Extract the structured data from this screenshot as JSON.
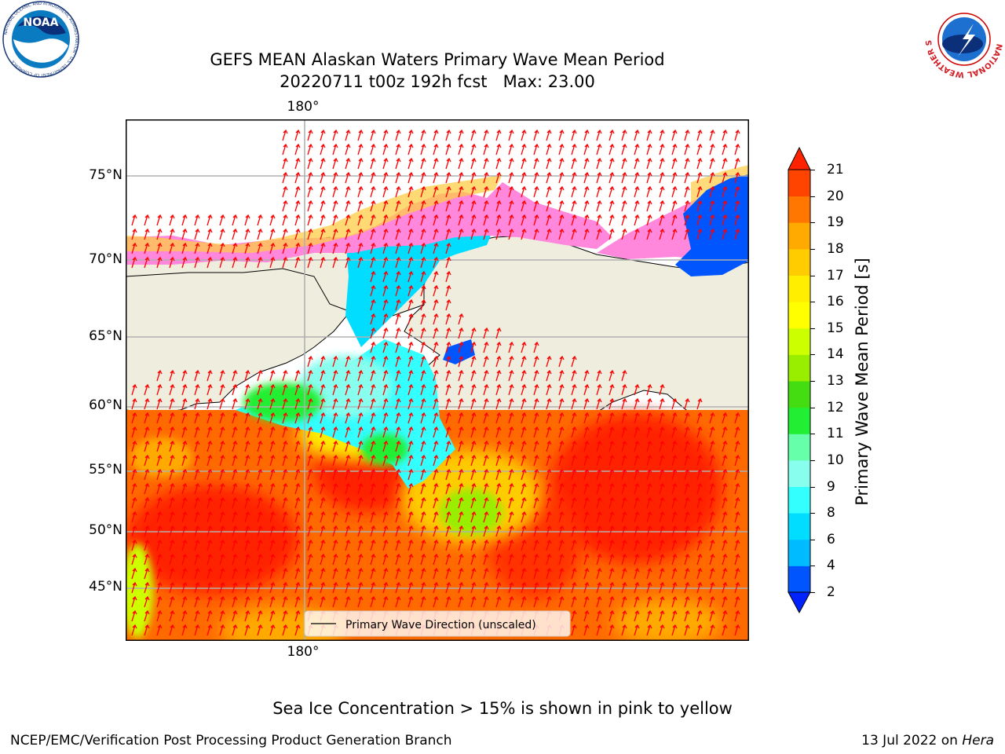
{
  "header": {
    "title_line1": "GEFS MEAN Alaskan Waters Primary Wave Mean Period",
    "title_line2": "20220711 t00z 192h fcst   Max: 23.00"
  },
  "logos": {
    "noaa_text": "NOAA",
    "noaa_ring": "NATIONAL OCEANIC AND ATMOSPHERIC ADMINISTRATION · U.S. DEPARTMENT OF COMMERCE",
    "nws_ring": "NATIONAL WEATHER SERVICE"
  },
  "map": {
    "latitude_labels": [
      "75°N",
      "70°N",
      "65°N",
      "60°N",
      "55°N",
      "50°N",
      "45°N"
    ],
    "longitude_label_top": "180°",
    "longitude_label_bottom": "180°",
    "legend_label": "Primary Wave Direction (unscaled)",
    "colors": {
      "land": "#efedde",
      "open_water_high_period": "#ff2200",
      "ice_pink": "#ff88dd",
      "ice_yellow": "#ffdd00",
      "arrow": "#ff0000"
    }
  },
  "colorbar": {
    "label": "Primary Wave Mean Period [s]",
    "ticks": [
      "21",
      "20",
      "19",
      "18",
      "17",
      "16",
      "15",
      "14",
      "13",
      "12",
      "11",
      "10",
      "9",
      "8",
      "6",
      "4",
      "2"
    ],
    "bands": [
      {
        "from": 2,
        "to": 4,
        "color": "#0055ff"
      },
      {
        "from": 4,
        "to": 6,
        "color": "#00bbff"
      },
      {
        "from": 6,
        "to": 8,
        "color": "#00ddff"
      },
      {
        "from": 8,
        "to": 9,
        "color": "#33ffff"
      },
      {
        "from": 9,
        "to": 10,
        "color": "#88ffee"
      },
      {
        "from": 10,
        "to": 11,
        "color": "#66ffaa"
      },
      {
        "from": 11,
        "to": 12,
        "color": "#22ee33"
      },
      {
        "from": 12,
        "to": 13,
        "color": "#44dd11"
      },
      {
        "from": 13,
        "to": 14,
        "color": "#99ee00"
      },
      {
        "from": 14,
        "to": 15,
        "color": "#ccff00"
      },
      {
        "from": 15,
        "to": 16,
        "color": "#ffff00"
      },
      {
        "from": 16,
        "to": 17,
        "color": "#ffee00"
      },
      {
        "from": 17,
        "to": 18,
        "color": "#ffcc00"
      },
      {
        "from": 18,
        "to": 19,
        "color": "#ffaa00"
      },
      {
        "from": 19,
        "to": 20,
        "color": "#ff7700"
      },
      {
        "from": 20,
        "to": 21,
        "color": "#ff4400"
      }
    ],
    "over_color": "#ff2200",
    "under_color": "#0022ff"
  },
  "caption": "Sea Ice Concentration > 15% is shown in pink to yellow",
  "footer": {
    "left": "NCEP/EMC/Verification Post Processing Product Generation Branch",
    "right_date": "13 Jul 2022 on",
    "right_host": "Hera"
  }
}
